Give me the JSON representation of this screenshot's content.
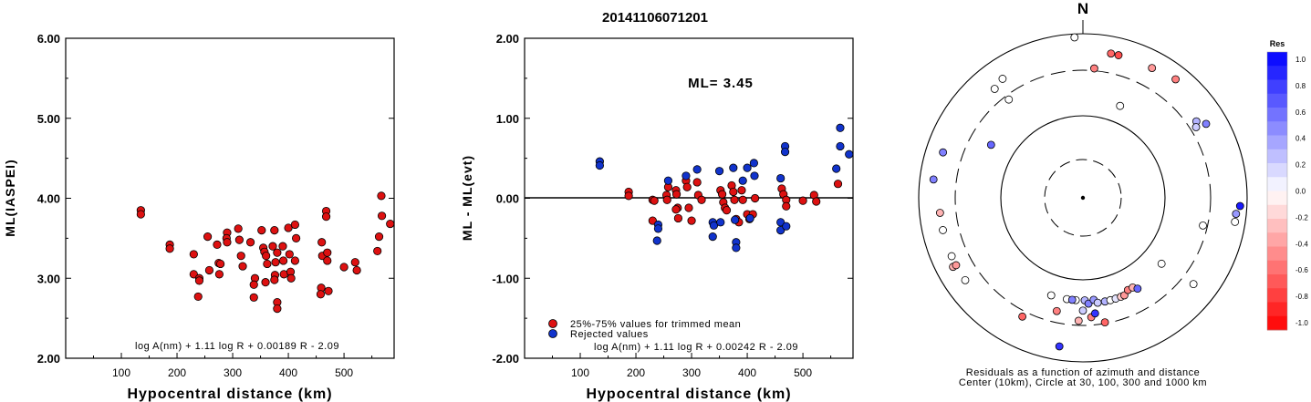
{
  "page_title": "20141106071201",
  "chart_data": [
    {
      "type": "scatter",
      "panel": "ml",
      "title": "",
      "xlabel": "Hypocentral distance (km)",
      "ylabel": "ML(IASPEI)",
      "xlim": [
        0,
        590
      ],
      "ylim": [
        2.0,
        6.0
      ],
      "xticks": [
        "100",
        "200",
        "300",
        "400",
        "500"
      ],
      "yticks": [
        "2.00",
        "3.00",
        "4.00",
        "5.00",
        "6.00"
      ],
      "formula": "log A(nm) + 1.11 log R + 0.00189 R - 2.09",
      "points": [
        [
          135,
          3.85
        ],
        [
          135,
          3.8
        ],
        [
          187,
          3.42
        ],
        [
          187,
          3.37
        ],
        [
          230,
          3.3
        ],
        [
          230,
          3.05
        ],
        [
          240,
          3.0
        ],
        [
          240,
          2.97
        ],
        [
          238,
          2.77
        ],
        [
          255,
          3.52
        ],
        [
          258,
          3.1
        ],
        [
          272,
          3.42
        ],
        [
          275,
          3.19
        ],
        [
          278,
          3.18
        ],
        [
          276,
          3.05
        ],
        [
          290,
          3.57
        ],
        [
          289,
          3.5
        ],
        [
          290,
          3.45
        ],
        [
          310,
          3.62
        ],
        [
          312,
          3.48
        ],
        [
          315,
          3.28
        ],
        [
          318,
          3.15
        ],
        [
          332,
          3.45
        ],
        [
          340,
          3.0
        ],
        [
          338,
          2.92
        ],
        [
          338,
          2.76
        ],
        [
          352,
          3.6
        ],
        [
          355,
          3.38
        ],
        [
          357,
          3.33
        ],
        [
          360,
          3.28
        ],
        [
          362,
          3.18
        ],
        [
          359,
          2.95
        ],
        [
          375,
          3.6
        ],
        [
          372,
          3.4
        ],
        [
          380,
          3.32
        ],
        [
          377,
          3.2
        ],
        [
          376,
          3.04
        ],
        [
          375,
          2.98
        ],
        [
          380,
          2.7
        ],
        [
          380,
          2.62
        ],
        [
          390,
          3.4
        ],
        [
          391,
          3.22
        ],
        [
          392,
          3.05
        ],
        [
          400,
          3.63
        ],
        [
          402,
          3.3
        ],
        [
          404,
          3.08
        ],
        [
          405,
          3.0
        ],
        [
          412,
          3.67
        ],
        [
          414,
          3.5
        ],
        [
          412,
          3.22
        ],
        [
          460,
          3.45
        ],
        [
          461,
          3.28
        ],
        [
          459,
          2.88
        ],
        [
          458,
          2.8
        ],
        [
          468,
          3.84
        ],
        [
          468,
          3.77
        ],
        [
          470,
          3.32
        ],
        [
          470,
          3.22
        ],
        [
          472,
          2.84
        ],
        [
          500,
          3.14
        ],
        [
          520,
          3.2
        ],
        [
          523,
          3.1
        ],
        [
          563,
          3.52
        ],
        [
          560,
          3.34
        ],
        [
          567,
          4.03
        ],
        [
          568,
          3.78
        ],
        [
          583,
          3.68
        ],
        [
          591,
          3.58
        ]
      ]
    },
    {
      "type": "scatter",
      "panel": "residual",
      "title": "",
      "xlabel": "Hypocentral distance (km)",
      "ylabel": "ML - ML(evt)",
      "xlim": [
        0,
        590
      ],
      "ylim": [
        -2.0,
        2.0
      ],
      "xticks": [
        "100",
        "200",
        "300",
        "400",
        "500"
      ],
      "yticks": [
        "-2.00",
        "-1.00",
        "0.00",
        "1.00",
        "2.00"
      ],
      "annotation": "ML= 3.45",
      "formula": "log A(nm) + 1.11 log R + 0.00242 R - 2.09",
      "legend_position": "bottom-left",
      "series": [
        {
          "name": "25%-75% values for trimmed mean",
          "color": "#dd1111",
          "points": [
            [
              187,
              0.08
            ],
            [
              187,
              0.03
            ],
            [
              230,
              -0.02
            ],
            [
              233,
              -0.03
            ],
            [
              230,
              -0.28
            ],
            [
              258,
              0.14
            ],
            [
              255,
              0.04
            ],
            [
              256,
              -0.02
            ],
            [
              272,
              0.1
            ],
            [
              273,
              0.05
            ],
            [
              275,
              -0.12
            ],
            [
              272,
              -0.14
            ],
            [
              276,
              -0.25
            ],
            [
              290,
              0.22
            ],
            [
              292,
              0.14
            ],
            [
              295,
              -0.12
            ],
            [
              300,
              -0.28
            ],
            [
              310,
              0.2
            ],
            [
              312,
              0.04
            ],
            [
              318,
              -0.02
            ],
            [
              352,
              0.1
            ],
            [
              355,
              0.05
            ],
            [
              357,
              -0.05
            ],
            [
              360,
              -0.12
            ],
            [
              363,
              -0.15
            ],
            [
              372,
              0.16
            ],
            [
              375,
              0.08
            ],
            [
              377,
              -0.02
            ],
            [
              380,
              -0.26
            ],
            [
              385,
              -0.3
            ],
            [
              390,
              0.1
            ],
            [
              392,
              -0.02
            ],
            [
              400,
              -0.2
            ],
            [
              404,
              -0.26
            ],
            [
              410,
              -0.2
            ],
            [
              414,
              0.0
            ],
            [
              462,
              0.12
            ],
            [
              465,
              0.05
            ],
            [
              470,
              -0.02
            ],
            [
              470,
              -0.1
            ],
            [
              500,
              -0.03
            ],
            [
              520,
              0.04
            ],
            [
              524,
              -0.04
            ],
            [
              563,
              0.18
            ]
          ]
        },
        {
          "name": "Rejected values",
          "color": "#1133cc",
          "points": [
            [
              135,
              0.46
            ],
            [
              135,
              0.41
            ],
            [
              240,
              -0.33
            ],
            [
              240,
              -0.38
            ],
            [
              238,
              -0.53
            ],
            [
              258,
              0.22
            ],
            [
              290,
              0.28
            ],
            [
              310,
              0.36
            ],
            [
              338,
              -0.3
            ],
            [
              338,
              -0.48
            ],
            [
              340,
              -0.34
            ],
            [
              350,
              0.34
            ],
            [
              352,
              -0.3
            ],
            [
              375,
              0.38
            ],
            [
              378,
              -0.27
            ],
            [
              380,
              -0.55
            ],
            [
              380,
              -0.62
            ],
            [
              392,
              0.22
            ],
            [
              400,
              0.38
            ],
            [
              405,
              -0.25
            ],
            [
              412,
              0.44
            ],
            [
              413,
              0.28
            ],
            [
              460,
              -0.3
            ],
            [
              460,
              -0.4
            ],
            [
              460,
              0.25
            ],
            [
              468,
              0.65
            ],
            [
              468,
              0.58
            ],
            [
              470,
              -0.35
            ],
            [
              560,
              0.37
            ],
            [
              567,
              0.88
            ],
            [
              567,
              0.65
            ],
            [
              583,
              0.55
            ],
            [
              591,
              0.56
            ]
          ]
        }
      ]
    },
    {
      "type": "polar-scatter",
      "panel": "azimuth",
      "north_label": "N",
      "caption_line1": "Residuals as a function of azimuth and distance",
      "caption_line2": "Center (10km), Circle at 30, 100, 300 and 1000 km",
      "rings": [
        {
          "label": "30 km",
          "style": "dashed"
        },
        {
          "label": "100 km",
          "style": "solid"
        },
        {
          "label": "300 km",
          "style": "dashed"
        },
        {
          "label": "1000 km",
          "style": "solid"
        }
      ],
      "colorbar": {
        "title": "Res",
        "ticks": [
          "1.0",
          "0.8",
          "0.6",
          "0.4",
          "0.2",
          "0.0",
          "-0.2",
          "-0.4",
          "-0.6",
          "-0.8",
          "-1.0"
        ],
        "positive_color": "#0000ff",
        "negative_color": "#ff0000"
      },
      "stations": [
        {
          "azimuth": 11,
          "distance": 430,
          "res": -0.6
        },
        {
          "azimuth": 14,
          "distance": 430,
          "res": -0.7
        },
        {
          "azimuth": 5,
          "distance": 380,
          "res": -0.5
        },
        {
          "azimuth": -3,
          "distance": 470,
          "res": 0.0
        },
        {
          "azimuth": -34,
          "distance": 420,
          "res": 0.0
        },
        {
          "azimuth": -39,
          "distance": 410,
          "res": 0.0
        },
        {
          "azimuth": -37,
          "distance": 360,
          "res": 0.0
        },
        {
          "azimuth": 28,
          "distance": 430,
          "res": -0.4
        },
        {
          "azimuth": 38,
          "distance": 440,
          "res": -0.5
        },
        {
          "azimuth": 22,
          "distance": 290,
          "res": 0.0
        },
        {
          "azimuth": 56,
          "distance": 400,
          "res": 0.3
        },
        {
          "azimuth": 59,
          "distance": 420,
          "res": 0.5
        },
        {
          "azimuth": 58,
          "distance": 390,
          "res": 0.2
        },
        {
          "azimuth": -60,
          "distance": 310,
          "res": 0.6
        },
        {
          "azimuth": -72,
          "distance": 430,
          "res": 0.5
        },
        {
          "azimuth": -83,
          "distance": 440,
          "res": 0.5
        },
        {
          "azimuth": 93,
          "distance": 460,
          "res": 0.9
        },
        {
          "azimuth": 96,
          "distance": 450,
          "res": 0.4
        },
        {
          "azimuth": 99,
          "distance": 450,
          "res": 0.0
        },
        {
          "azimuth": 103,
          "distance": 360,
          "res": 0.0
        },
        {
          "azimuth": 128,
          "distance": 410,
          "res": 0.0
        },
        {
          "azimuth": -96,
          "distance": 420,
          "res": -0.3
        },
        {
          "azimuth": -103,
          "distance": 420,
          "res": 0.0
        },
        {
          "azimuth": -114,
          "distance": 420,
          "res": 0.0
        },
        {
          "azimuth": -118,
          "distance": 430,
          "res": -0.3
        },
        {
          "azimuth": -118,
          "distance": 420,
          "res": -0.4
        },
        {
          "azimuth": -125,
          "distance": 420,
          "res": 0.0
        },
        {
          "azimuth": -153,
          "distance": 390,
          "res": -0.6
        },
        {
          "azimuth": -171,
          "distance": 440,
          "res": 0.8
        },
        {
          "azimuth": -167,
          "distance": 340,
          "res": -0.5
        },
        {
          "azimuth": -162,
          "distance": 300,
          "res": 0.0
        },
        {
          "azimuth": -171,
          "distance": 300,
          "res": 0.0
        },
        {
          "azimuth": -176,
          "distance": 300,
          "res": 0.0
        },
        {
          "azimuth": 179,
          "distance": 300,
          "res": 0.3
        },
        {
          "azimuth": 177,
          "distance": 310,
          "res": 0.5
        },
        {
          "azimuth": 174,
          "distance": 300,
          "res": 0.4
        },
        {
          "azimuth": 172,
          "distance": 310,
          "res": 0.2
        },
        {
          "azimuth": -180,
          "distance": 330,
          "res": 0.2
        },
        {
          "azimuth": -178,
          "distance": 360,
          "res": -0.3
        },
        {
          "azimuth": 176,
          "distance": 350,
          "res": -0.5
        },
        {
          "azimuth": 174,
          "distance": 340,
          "res": 0.8
        },
        {
          "azimuth": 170,
          "distance": 370,
          "res": -0.6
        },
        {
          "azimuth": 168,
          "distance": 310,
          "res": 0.3
        },
        {
          "azimuth": 165,
          "distance": 310,
          "res": 0.0
        },
        {
          "azimuth": 162,
          "distance": 310,
          "res": 0.1
        },
        {
          "azimuth": 159,
          "distance": 310,
          "res": -0.2
        },
        {
          "azimuth": 157,
          "distance": 310,
          "res": -0.4
        },
        {
          "azimuth": 154,
          "distance": 300,
          "res": -0.5
        },
        {
          "azimuth": 151,
          "distance": 300,
          "res": -0.3
        },
        {
          "azimuth": 149,
          "distance": 310,
          "res": 0.6
        },
        {
          "azimuth": 130,
          "distance": 300,
          "res": 0.0
        },
        {
          "azimuth": -174,
          "distance": 300,
          "res": 0.5
        }
      ]
    }
  ]
}
